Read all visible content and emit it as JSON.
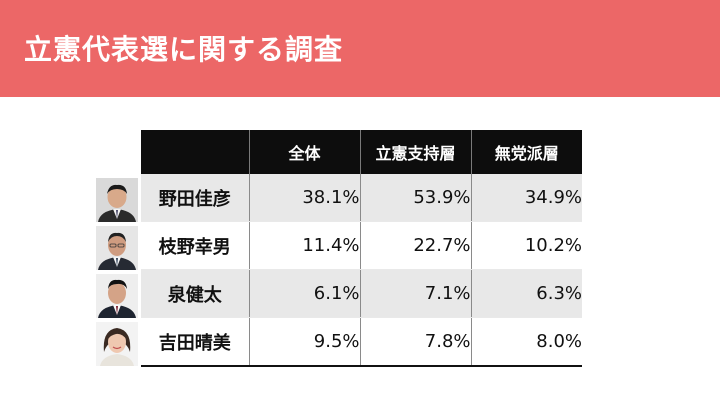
{
  "header": {
    "title": "立憲代表選に関する調査"
  },
  "table": {
    "columns": [
      "全体",
      "立憲支持層",
      "無党派層"
    ],
    "rows": [
      {
        "name": "野田佳彦",
        "values": [
          "38.1%",
          "53.9%",
          "34.9%"
        ]
      },
      {
        "name": "枝野幸男",
        "values": [
          "11.4%",
          "22.7%",
          "10.2%"
        ]
      },
      {
        "name": "泉健太",
        "values": [
          "6.1%",
          "7.1%",
          "6.3%"
        ]
      },
      {
        "name": "吉田晴美",
        "values": [
          "9.5%",
          "7.8%",
          "8.0%"
        ]
      }
    ]
  },
  "colors": {
    "header_bg": "#ec6767",
    "table_header_bg": "#0d0d0d",
    "row_shade": "#e8e8e8"
  }
}
